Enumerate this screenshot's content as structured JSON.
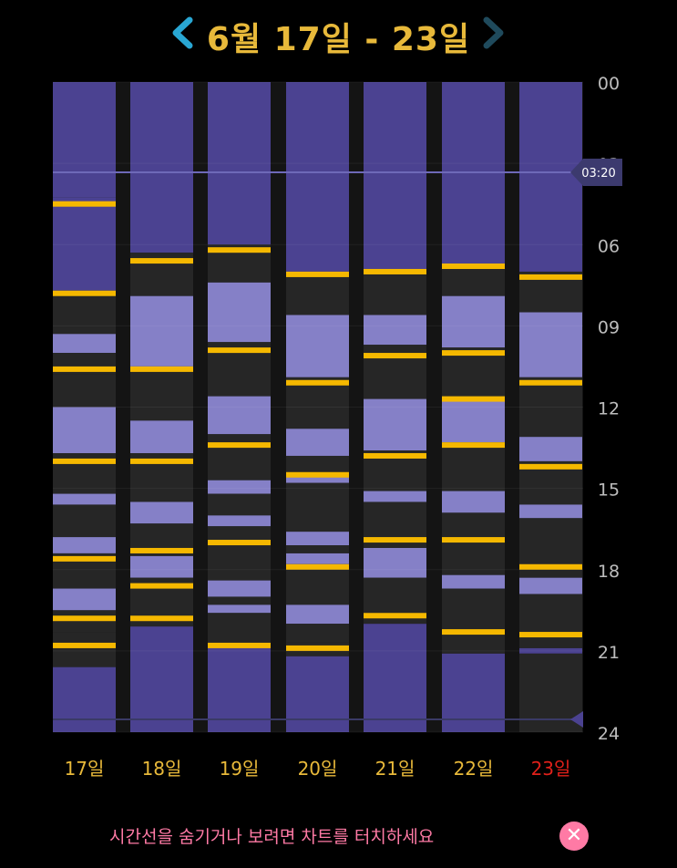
{
  "header": {
    "title": "6월 17일 - 23일",
    "prev_icon": "chevron-left-icon",
    "next_icon": "chevron-right-icon"
  },
  "colors": {
    "night": "#4b4291",
    "light": "#8580c7",
    "dark": "#262626",
    "marker": "#f5b800",
    "day_label": "#e8b93a",
    "today_label": "#e0201a",
    "axis_label": "#bdbdbd",
    "hint": "#ff7aa5"
  },
  "chart_data": {
    "type": "bar",
    "ylim": [
      0,
      24
    ],
    "yticks": [
      "00",
      "03",
      "06",
      "09",
      "12",
      "15",
      "18",
      "21",
      "24"
    ],
    "current_time": "03:20",
    "days": [
      {
        "label": "17일",
        "today": false,
        "segments": [
          [
            0,
            4.25,
            "night"
          ],
          [
            4.25,
            7.7,
            "night"
          ],
          [
            7.7,
            9.3,
            "dark"
          ],
          [
            9.3,
            10.0,
            "light"
          ],
          [
            10.0,
            10.8,
            "dark"
          ],
          [
            10.8,
            12.0,
            "dark"
          ],
          [
            12.0,
            13.7,
            "light"
          ],
          [
            13.7,
            15.2,
            "dark"
          ],
          [
            15.2,
            15.6,
            "light"
          ],
          [
            15.6,
            16.8,
            "dark"
          ],
          [
            16.8,
            17.4,
            "light"
          ],
          [
            17.4,
            18.7,
            "dark"
          ],
          [
            18.7,
            19.5,
            "light"
          ],
          [
            19.5,
            20.3,
            "dark"
          ],
          [
            20.3,
            20.9,
            "dark"
          ],
          [
            20.9,
            21.6,
            "dark"
          ],
          [
            21.6,
            24,
            "night"
          ]
        ],
        "markers": [
          4.5,
          7.8,
          10.6,
          14.0,
          17.6,
          19.8,
          20.8
        ]
      },
      {
        "label": "18일",
        "today": false,
        "segments": [
          [
            0,
            6.3,
            "night"
          ],
          [
            6.3,
            7.9,
            "dark"
          ],
          [
            7.9,
            10.5,
            "light"
          ],
          [
            10.5,
            12.5,
            "dark"
          ],
          [
            12.5,
            13.7,
            "light"
          ],
          [
            13.7,
            15.5,
            "dark"
          ],
          [
            15.5,
            16.3,
            "light"
          ],
          [
            16.3,
            17.5,
            "dark"
          ],
          [
            17.5,
            18.3,
            "light"
          ],
          [
            18.3,
            19.7,
            "dark"
          ],
          [
            19.7,
            20.1,
            "dark"
          ],
          [
            20.1,
            24,
            "night"
          ]
        ],
        "markers": [
          6.6,
          10.6,
          14.0,
          17.3,
          18.6,
          19.8
        ]
      },
      {
        "label": "19일",
        "today": false,
        "segments": [
          [
            0,
            6.0,
            "night"
          ],
          [
            6.0,
            7.4,
            "dark"
          ],
          [
            7.4,
            9.6,
            "light"
          ],
          [
            9.6,
            11.6,
            "dark"
          ],
          [
            11.6,
            13.0,
            "light"
          ],
          [
            13.0,
            14.7,
            "dark"
          ],
          [
            14.7,
            15.2,
            "light"
          ],
          [
            15.2,
            16.0,
            "dark"
          ],
          [
            16.0,
            16.4,
            "light"
          ],
          [
            16.4,
            18.4,
            "dark"
          ],
          [
            18.4,
            19.0,
            "light"
          ],
          [
            19.0,
            19.3,
            "dark"
          ],
          [
            19.3,
            19.6,
            "light"
          ],
          [
            19.6,
            20.7,
            "dark"
          ],
          [
            20.7,
            24,
            "night"
          ]
        ],
        "markers": [
          6.2,
          9.9,
          13.4,
          17.0,
          20.8
        ]
      },
      {
        "label": "20일",
        "today": false,
        "segments": [
          [
            0,
            7.0,
            "night"
          ],
          [
            7.0,
            8.6,
            "dark"
          ],
          [
            8.6,
            10.9,
            "light"
          ],
          [
            10.9,
            12.8,
            "dark"
          ],
          [
            12.8,
            13.8,
            "light"
          ],
          [
            13.8,
            14.5,
            "dark"
          ],
          [
            14.5,
            14.8,
            "light"
          ],
          [
            14.8,
            16.6,
            "dark"
          ],
          [
            16.6,
            17.1,
            "light"
          ],
          [
            17.1,
            17.4,
            "dark"
          ],
          [
            17.4,
            17.8,
            "light"
          ],
          [
            17.8,
            19.3,
            "dark"
          ],
          [
            19.3,
            20.0,
            "light"
          ],
          [
            20.0,
            20.7,
            "dark"
          ],
          [
            20.7,
            21.2,
            "dark"
          ],
          [
            21.2,
            24,
            "night"
          ]
        ],
        "markers": [
          7.1,
          11.1,
          14.5,
          17.9,
          20.9
        ]
      },
      {
        "label": "21일",
        "today": false,
        "segments": [
          [
            0,
            6.9,
            "night"
          ],
          [
            6.9,
            8.6,
            "dark"
          ],
          [
            8.6,
            9.7,
            "light"
          ],
          [
            9.7,
            11.7,
            "dark"
          ],
          [
            11.7,
            13.6,
            "light"
          ],
          [
            13.6,
            15.1,
            "dark"
          ],
          [
            15.1,
            15.5,
            "light"
          ],
          [
            15.5,
            17.2,
            "dark"
          ],
          [
            17.2,
            18.3,
            "light"
          ],
          [
            18.3,
            20.0,
            "dark"
          ],
          [
            20.0,
            24,
            "night"
          ]
        ],
        "markers": [
          7.0,
          10.1,
          13.8,
          16.9,
          19.7
        ]
      },
      {
        "label": "22일",
        "today": false,
        "segments": [
          [
            0,
            6.8,
            "night"
          ],
          [
            6.8,
            7.9,
            "dark"
          ],
          [
            7.9,
            9.8,
            "light"
          ],
          [
            9.8,
            11.7,
            "dark"
          ],
          [
            11.7,
            13.3,
            "light"
          ],
          [
            13.3,
            15.1,
            "dark"
          ],
          [
            15.1,
            15.9,
            "light"
          ],
          [
            15.9,
            18.2,
            "dark"
          ],
          [
            18.2,
            18.7,
            "light"
          ],
          [
            18.7,
            21.1,
            "dark"
          ],
          [
            21.1,
            24,
            "night"
          ]
        ],
        "markers": [
          6.8,
          10.0,
          11.7,
          13.4,
          16.9,
          20.3
        ]
      },
      {
        "label": "23일",
        "today": true,
        "segments": [
          [
            0,
            7.0,
            "night"
          ],
          [
            7.0,
            8.5,
            "dark"
          ],
          [
            8.5,
            10.9,
            "light"
          ],
          [
            10.9,
            13.1,
            "dark"
          ],
          [
            13.1,
            14.0,
            "light"
          ],
          [
            14.0,
            15.6,
            "dark"
          ],
          [
            15.6,
            16.1,
            "light"
          ],
          [
            16.1,
            18.3,
            "dark"
          ],
          [
            18.3,
            18.9,
            "light"
          ],
          [
            18.9,
            20.9,
            "dark"
          ],
          [
            20.9,
            21.1,
            "night"
          ],
          [
            21.1,
            24,
            "dark"
          ]
        ],
        "markers": [
          7.2,
          11.1,
          14.2,
          17.9,
          20.4
        ]
      }
    ]
  },
  "footer": {
    "hint": "시간선을 숨기거나 보려면 차트를 터치하세요",
    "close_icon": "close-icon"
  }
}
